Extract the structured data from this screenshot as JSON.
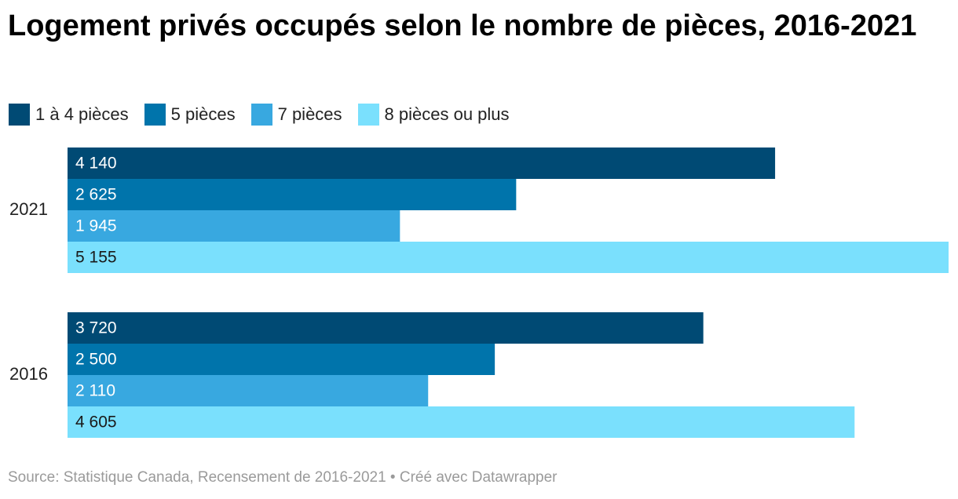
{
  "title": "Logement privés occupés selon le nombre de pièces, 2016-2021",
  "source": "Source: Statistique Canada, Recensement de 2016-2021 • Créé avec Datawrapper",
  "chart_data": {
    "type": "bar",
    "orientation": "horizontal",
    "title": "Logement privés occupés selon le nombre de pièces, 2016-2021",
    "categories": [
      "2021",
      "2016"
    ],
    "series": [
      {
        "name": "1 à 4 pièces",
        "color": "#004a74",
        "values": [
          4140,
          3720
        ],
        "labels": [
          "4 140",
          "3 720"
        ]
      },
      {
        "name": "5 pièces",
        "color": "#0074ab",
        "values": [
          2625,
          2500
        ],
        "labels": [
          "2 625",
          "2 500"
        ]
      },
      {
        "name": "7 pièces",
        "color": "#38a8e0",
        "values": [
          1945,
          2110
        ],
        "labels": [
          "1 945",
          "2 110"
        ]
      },
      {
        "name": "8 pièces ou plus",
        "color": "#7ae0fd",
        "values": [
          5155,
          4605
        ],
        "labels": [
          "5 155",
          "4 605"
        ]
      }
    ],
    "label_colors": {
      "dark_bars": "#ffffff",
      "light_bars": "#1a1a1a"
    },
    "xlim": [
      0,
      5155
    ],
    "grid": false,
    "legend_position": "top-left",
    "xlabel": "",
    "ylabel": ""
  }
}
